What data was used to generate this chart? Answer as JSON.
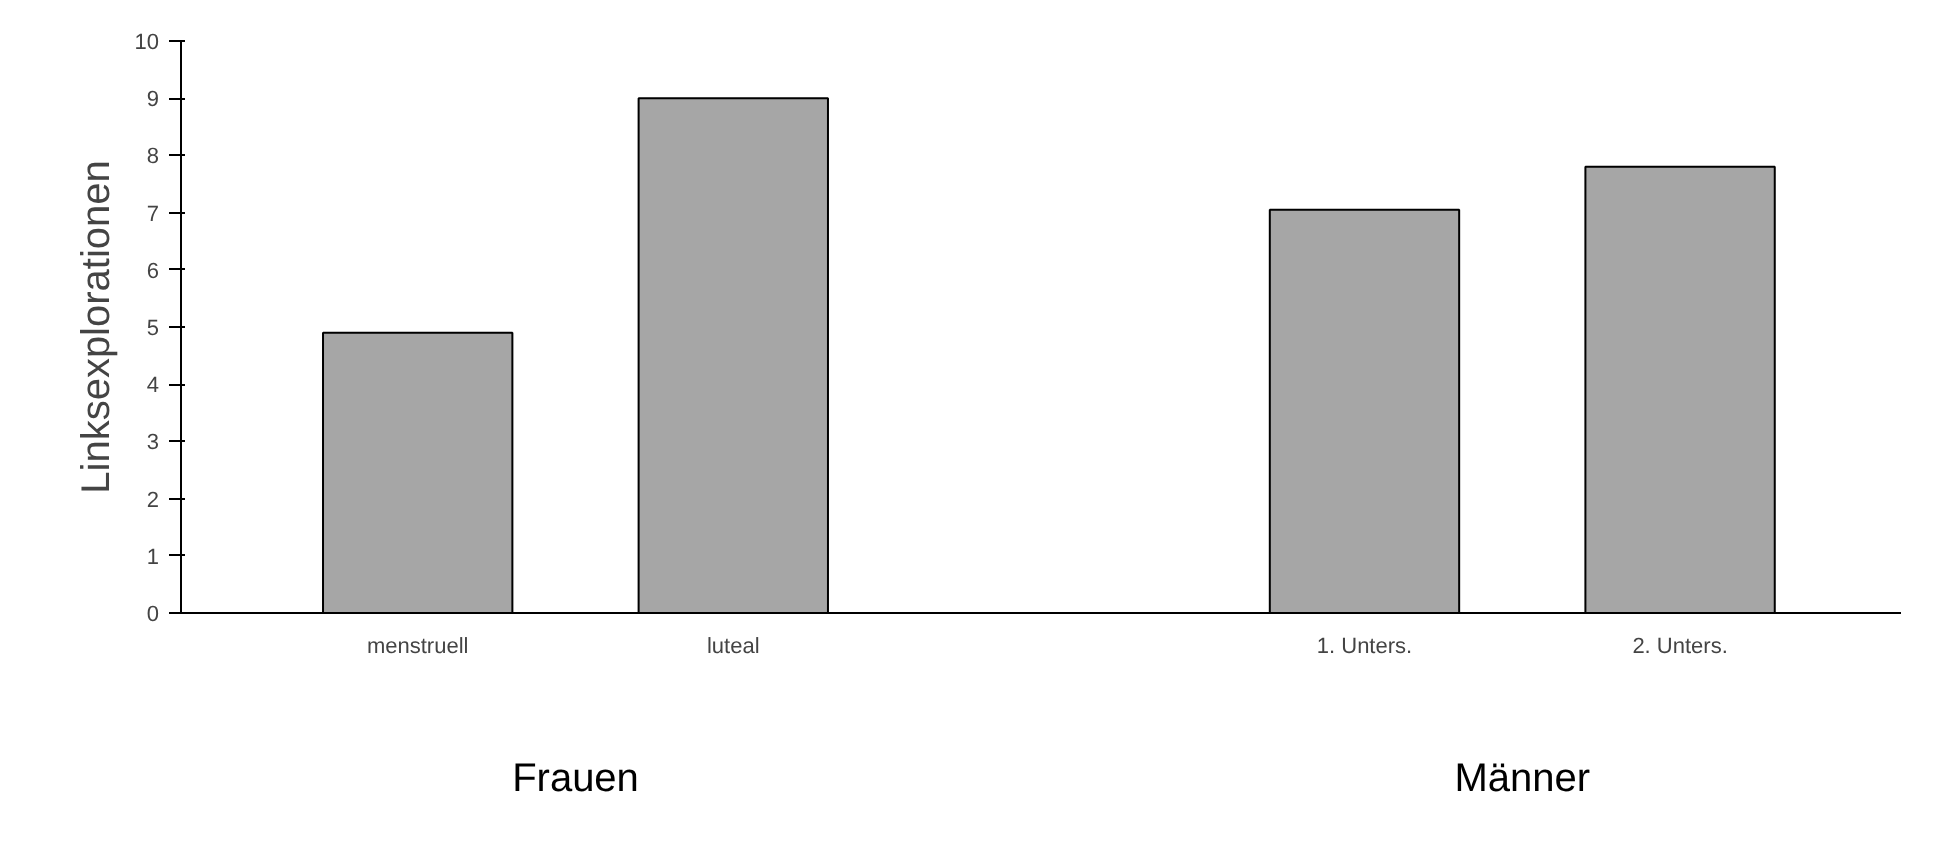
{
  "chart_data": {
    "type": "bar",
    "ylabel": "Linksexplorationen",
    "categories": [
      "menstruell",
      "luteal",
      null,
      "1. Unters.",
      "2. Unters."
    ],
    "values": [
      4.9,
      9.0,
      null,
      7.05,
      7.8
    ],
    "color": "#a6a6a6",
    "ylim": [
      0,
      10
    ],
    "yticks": [
      0,
      1,
      2,
      3,
      4,
      5,
      6,
      7,
      8,
      9,
      10
    ],
    "grid": false,
    "annotations": [
      "Frauen",
      "Männer"
    ]
  }
}
